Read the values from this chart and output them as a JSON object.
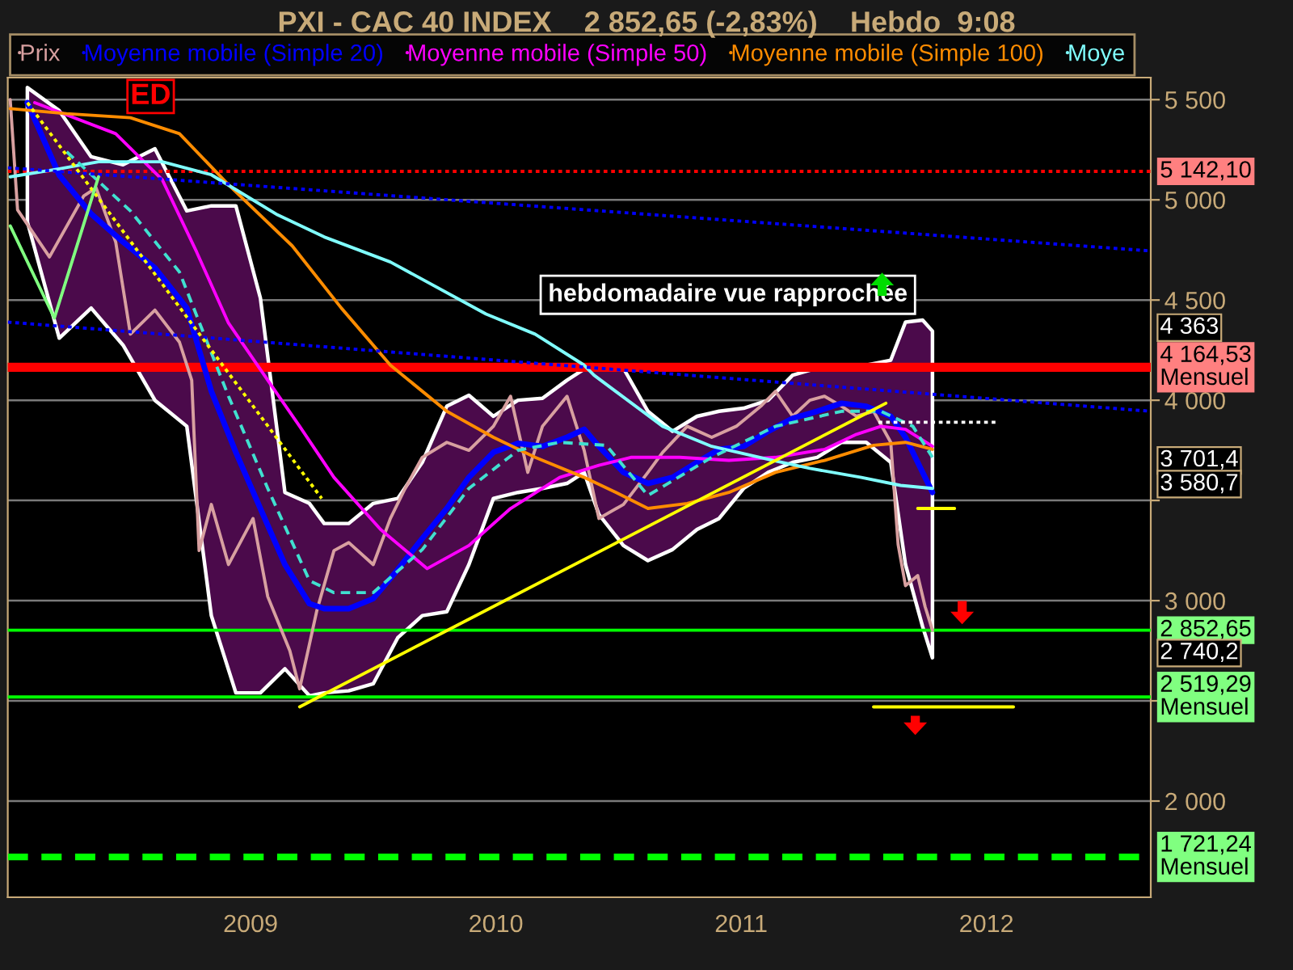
{
  "chart_data": {
    "type": "line",
    "title": "PXI - CAC 40 INDEX    2 852,65 (-2,83%)    Hebdo  9:08",
    "xlim": [
      2008.01,
      2012.67
    ],
    "xticks": [
      2009,
      2010,
      2011,
      2012
    ],
    "ylim": [
      1520,
      5610
    ],
    "yticks": [
      {
        "value": 2000,
        "label": "2 000"
      },
      {
        "value": 2500,
        "label": null
      },
      {
        "value": 3000,
        "label": "3 000"
      },
      {
        "value": 3500,
        "label": null
      },
      {
        "value": 4000,
        "label": "4 000"
      },
      {
        "value": 4500,
        "label": "4 500"
      },
      {
        "value": 5000,
        "label": "5 000"
      },
      {
        "value": 5500,
        "label": "5 500"
      }
    ],
    "grid": "y",
    "legend": "top left",
    "series": [
      {
        "name": "Prix",
        "color": "#d8a0a0",
        "x": [
          2008.02,
          2008.05,
          2008.18,
          2008.32,
          2008.37,
          2008.45,
          2008.51,
          2008.61,
          2008.71,
          2008.76,
          2008.79,
          2008.84,
          2008.91,
          2009.01,
          2009.07,
          2009.16,
          2009.2,
          2009.27,
          2009.34,
          2009.4,
          2009.5,
          2009.57,
          2009.63,
          2009.7,
          2009.8,
          2009.89,
          2009.99,
          2010.06,
          2010.13,
          2010.19,
          2010.29,
          2010.36,
          2010.42,
          2010.52,
          2010.62,
          2010.68,
          2010.78,
          2010.88,
          2010.98,
          2011.08,
          2011.14,
          2011.21,
          2011.28,
          2011.34,
          2011.41,
          2011.47,
          2011.54,
          2011.61,
          2011.64,
          2011.67,
          2011.72,
          2011.75,
          2011.78
        ],
        "values": [
          5500,
          4950,
          4715,
          5020,
          5060,
          4790,
          4330,
          4450,
          4290,
          4100,
          3250,
          3480,
          3180,
          3410,
          3020,
          2750,
          2560,
          2950,
          3250,
          3290,
          3180,
          3410,
          3560,
          3715,
          3790,
          3750,
          3870,
          4020,
          3640,
          3870,
          4020,
          3750,
          3410,
          3480,
          3640,
          3740,
          3870,
          3815,
          3870,
          3970,
          4045,
          3920,
          4000,
          4020,
          3970,
          3920,
          3945,
          3790,
          3280,
          3075,
          3125,
          2970,
          2852.65
        ]
      },
      {
        "name": "Moyenne mobile (Simple 20)",
        "color": "#0000ff",
        "x": [
          2008.09,
          2008.22,
          2008.35,
          2008.48,
          2008.61,
          2008.74,
          2008.84,
          2008.94,
          2009.04,
          2009.14,
          2009.24,
          2009.3,
          2009.4,
          2009.5,
          2009.6,
          2009.7,
          2009.8,
          2009.89,
          2009.99,
          2010.09,
          2010.19,
          2010.29,
          2010.36,
          2010.42,
          2010.52,
          2010.62,
          2010.72,
          2010.82,
          2010.91,
          2011.01,
          2011.11,
          2011.21,
          2011.31,
          2011.41,
          2011.51,
          2011.61,
          2011.67,
          2011.74,
          2011.78
        ],
        "values": [
          5485,
          5123,
          4930,
          4790,
          4660,
          4460,
          4045,
          3740,
          3460,
          3180,
          2985,
          2960,
          2960,
          3010,
          3155,
          3310,
          3460,
          3615,
          3740,
          3785,
          3770,
          3815,
          3855,
          3770,
          3640,
          3585,
          3615,
          3690,
          3755,
          3770,
          3845,
          3910,
          3945,
          3985,
          3970,
          3920,
          3815,
          3640,
          3540
        ],
        "upper": [
          5560,
          5445,
          5215,
          5175,
          5255,
          4945,
          4970,
          4970,
          4510,
          3540,
          3485,
          3385,
          3385,
          3485,
          3510,
          3690,
          3970,
          4025,
          3920,
          4000,
          4010,
          4100,
          4155,
          4175,
          4160,
          3945,
          3845,
          3920,
          3945,
          3960,
          4000,
          4125,
          4160,
          4155,
          4175,
          4200,
          4390,
          4400,
          4345
        ],
        "lower": [
          4890,
          4310,
          4460,
          4275,
          4000,
          3870,
          2925,
          2540,
          2540,
          2660,
          2525,
          2540,
          2550,
          2585,
          2815,
          2925,
          2945,
          3180,
          3510,
          3540,
          3560,
          3585,
          3640,
          3430,
          3275,
          3200,
          3255,
          3355,
          3410,
          3560,
          3640,
          3690,
          3715,
          3790,
          3790,
          3690,
          3180,
          2870,
          2715
        ]
      },
      {
        "name": "Moyenne mobile (Simple 50)",
        "color": "#ff00ff",
        "x": [
          2008.12,
          2008.45,
          2008.64,
          2008.78,
          2008.91,
          2009.07,
          2009.2,
          2009.34,
          2009.53,
          2009.72,
          2009.89,
          2010.06,
          2010.26,
          2010.42,
          2010.55,
          2010.75,
          2010.95,
          2011.14,
          2011.34,
          2011.47,
          2011.57,
          2011.67,
          2011.78
        ],
        "values": [
          5485,
          5330,
          5100,
          4740,
          4385,
          4100,
          3870,
          3615,
          3355,
          3160,
          3275,
          3460,
          3615,
          3675,
          3715,
          3715,
          3700,
          3715,
          3755,
          3830,
          3870,
          3855,
          3770
        ]
      },
      {
        "name": "Moyenne mobile (Simple 100)",
        "color": "#ff8c00",
        "x": [
          2008.02,
          2008.25,
          2008.51,
          2008.71,
          2008.91,
          2009.17,
          2009.37,
          2009.57,
          2009.8,
          2009.99,
          2010.16,
          2010.36,
          2010.49,
          2010.62,
          2010.78,
          2010.95,
          2011.14,
          2011.34,
          2011.54,
          2011.67,
          2011.78
        ],
        "values": [
          5455,
          5430,
          5410,
          5330,
          5075,
          4770,
          4460,
          4175,
          3945,
          3815,
          3715,
          3615,
          3540,
          3460,
          3485,
          3540,
          3640,
          3700,
          3775,
          3790,
          3755
        ]
      },
      {
        "name": "Moye",
        "color": "#80ffff",
        "x": [
          2008.02,
          2008.22,
          2008.38,
          2008.64,
          2008.84,
          2009.11,
          2009.3,
          2009.57,
          2009.96,
          2010.16,
          2010.36,
          2010.4,
          2010.68,
          2010.88,
          2011.13,
          2011.28,
          2011.49,
          2011.65,
          2011.78
        ],
        "values": [
          5115,
          5155,
          5190,
          5190,
          5125,
          4925,
          4815,
          4690,
          4430,
          4330,
          4175,
          4125,
          3870,
          3770,
          3700,
          3660,
          3615,
          3575,
          3560
        ]
      },
      {
        "color": "#40e0d0",
        "line_style": "dashed",
        "x": [
          2008.25,
          2008.51,
          2008.71,
          2008.91,
          2009.07,
          2009.24,
          2009.34,
          2009.5,
          2009.7,
          2009.89,
          2010.09,
          2010.26,
          2010.45,
          2010.62,
          2010.88,
          2011.14,
          2011.41,
          2011.57,
          2011.7,
          2011.78
        ],
        "values": [
          5240,
          4945,
          4640,
          4020,
          3560,
          3100,
          3040,
          3040,
          3255,
          3560,
          3750,
          3790,
          3775,
          3525,
          3715,
          3870,
          3945,
          3945,
          3870,
          3715
        ]
      },
      {
        "color": "#0000ff",
        "line_style": "dotted",
        "x": [
          2008.01,
          2012.67
        ],
        "values": [
          5160,
          4745
        ]
      },
      {
        "color": "#0000ff",
        "line_style": "dotted",
        "x": [
          2008.01,
          2012.67
        ],
        "values": [
          4390,
          3945
        ]
      },
      {
        "color": "#ffff00",
        "x": [
          2009.2,
          2011.59
        ],
        "values": [
          2470,
          3985
        ]
      },
      {
        "color": "#ffff00",
        "line_style": "dotted",
        "x": [
          2008.09,
          2009.29
        ],
        "values": [
          5485,
          3510
        ]
      },
      {
        "color": "#80ff80",
        "x": [
          2008.02,
          2008.2,
          2008.38
        ],
        "values": [
          4870,
          4410,
          5115
        ]
      },
      {
        "color": "#ffffff",
        "line_style": "dotted",
        "x": [
          2011.56,
          2012.05
        ],
        "values": [
          3890,
          3890
        ]
      },
      {
        "color": "#ffff00",
        "x": [
          2011.72,
          2011.87
        ],
        "values": [
          3460,
          3460
        ]
      },
      {
        "color": "#ffff00",
        "x": [
          2011.54,
          2012.11
        ],
        "values": [
          2470,
          2470
        ]
      }
    ],
    "ref_lines": [
      {
        "axis": "y",
        "value": 5142.1,
        "label": "5 142,10",
        "color": "#ff0000",
        "line_style": "dotted"
      },
      {
        "axis": "y",
        "value": 4164.53,
        "label": "4 164,53\nMensuel",
        "color": "#ff0000",
        "line_style": "solid"
      },
      {
        "axis": "y",
        "value": 2852.65,
        "label": "2 852,65",
        "color": "#00ff00",
        "line_style": "solid"
      },
      {
        "axis": "y",
        "value": 2519.29,
        "label": "2 519,29\nMensuel",
        "color": "#00ff00",
        "line_style": "solid"
      },
      {
        "axis": "y",
        "value": 1721.24,
        "label": "1 721,24\nMensuel",
        "color": "#00ff00",
        "line_style": "dashed"
      }
    ],
    "annotations": [
      "ED",
      "hebdomadaire vue rapprochée",
      "4 363",
      "3 701,4",
      "3 580,7",
      "2 740,2"
    ]
  }
}
